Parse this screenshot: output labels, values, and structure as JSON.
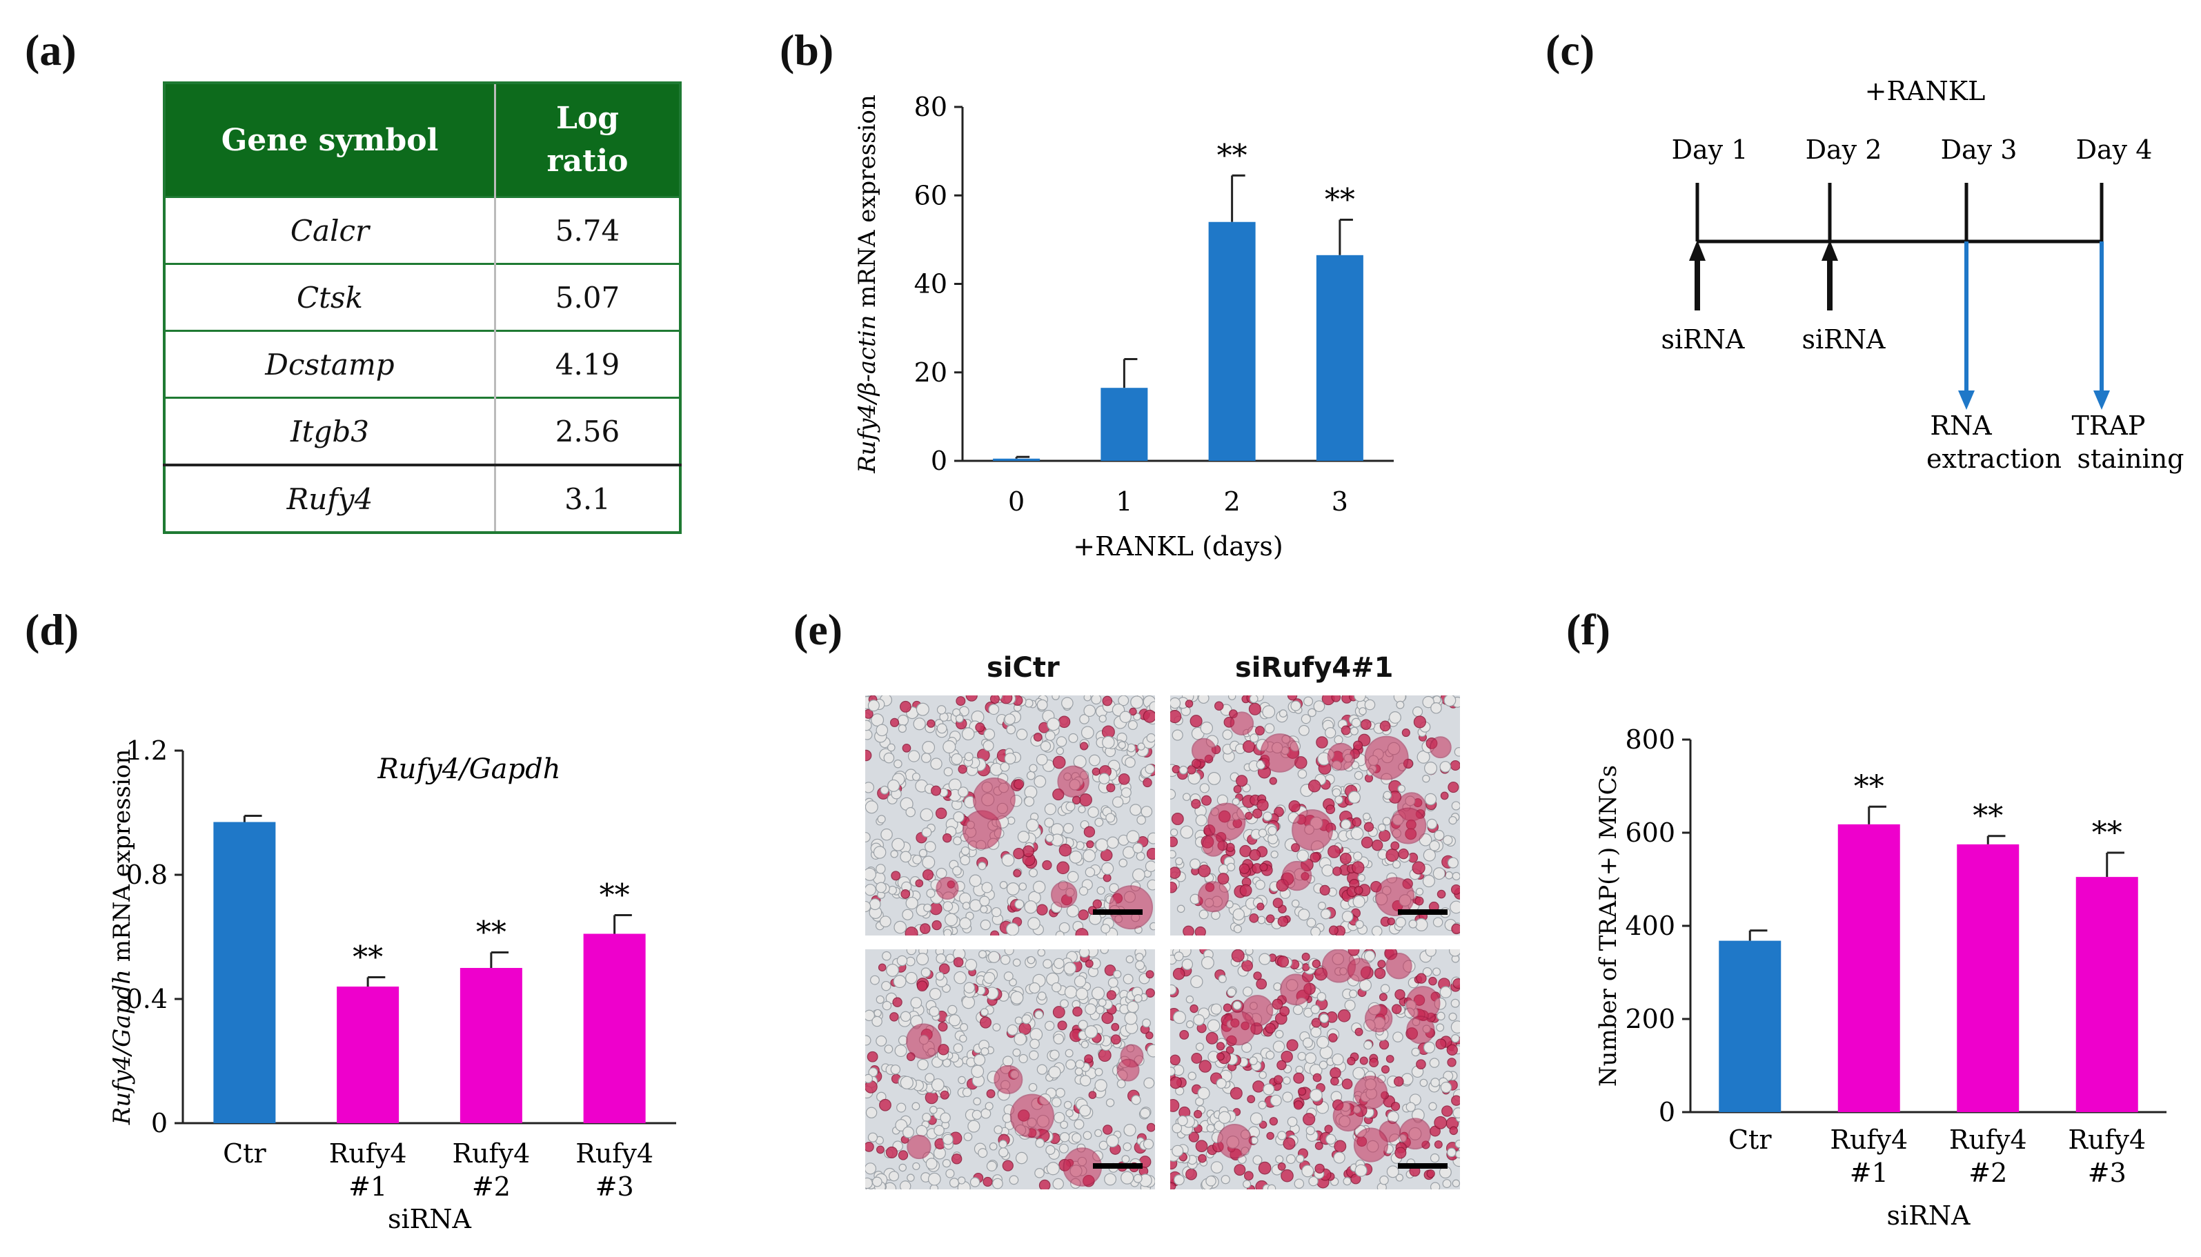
{
  "panel_labels": {
    "a": "(a)",
    "b": "(b)",
    "c": "(c)",
    "d": "(d)",
    "e": "(e)",
    "f": "(f)"
  },
  "table": {
    "headers": [
      "Gene symbol",
      "Log ratio"
    ],
    "rows": [
      {
        "gene": "Calcr",
        "ratio": "5.74"
      },
      {
        "gene": "Ctsk",
        "ratio": "5.07"
      },
      {
        "gene": "Dcstamp",
        "ratio": "4.19"
      },
      {
        "gene": "Itgb3",
        "ratio": "2.56"
      },
      {
        "gene": "Rufy4",
        "ratio": "3.1"
      }
    ]
  },
  "timeline": {
    "title": "+RANKL",
    "days": [
      "Day 1",
      "Day 2",
      "Day 3",
      "Day 4"
    ],
    "sirna_label": "siRNA",
    "rna_label": [
      "RNA",
      "extraction"
    ],
    "trap_label": [
      "TRAP",
      "staining"
    ],
    "colors": {
      "black_arrow": "#111111",
      "blue_arrow": "#1f78c8"
    }
  },
  "images": {
    "col_titles": [
      "siCtr",
      "siRufy4#1"
    ],
    "cell_colors": {
      "background": "#d7dbe0",
      "stained": "#c8305a",
      "unstained": "#e6e6e6"
    }
  },
  "chart_data": [
    {
      "id": "b",
      "type": "bar",
      "categories": [
        "0",
        "1",
        "2",
        "3"
      ],
      "values": [
        0.5,
        16.5,
        54,
        46.5
      ],
      "errors": [
        0.4,
        6.5,
        10.5,
        8
      ],
      "significance": [
        "",
        "",
        "**",
        "**"
      ],
      "colors": [
        "#1f78c8",
        "#1f78c8",
        "#1f78c8",
        "#1f78c8"
      ],
      "ylabel_italic": "Rufy4/β-actin",
      "ylabel": "mRNA expression",
      "xlabel": "+RANKL (days)",
      "ylim": [
        0,
        80
      ],
      "yticks": [
        "0",
        "20",
        "40",
        "60",
        "80"
      ]
    },
    {
      "id": "d",
      "type": "bar",
      "title": "Rufy4/Gapdh",
      "categories": [
        [
          "Ctr"
        ],
        [
          "Rufy4",
          "#1"
        ],
        [
          "Rufy4",
          "#2"
        ],
        [
          "Rufy4",
          "#3"
        ]
      ],
      "values": [
        0.97,
        0.44,
        0.5,
        0.61
      ],
      "errors": [
        0.02,
        0.03,
        0.05,
        0.06
      ],
      "significance": [
        "",
        "**",
        "**",
        "**"
      ],
      "colors": [
        "#1f78c8",
        "#ee00cc",
        "#ee00cc",
        "#ee00cc"
      ],
      "ylabel_italic": "Rufy4/Gapdh",
      "ylabel": "mRNA expression",
      "xlabel": "siRNA",
      "ylim": [
        0,
        1.2
      ],
      "yticks": [
        "0",
        "0.4",
        "0.8",
        "1.2"
      ]
    },
    {
      "id": "f",
      "type": "bar",
      "categories": [
        [
          "Ctr"
        ],
        [
          "Rufy4",
          "#1"
        ],
        [
          "Rufy4",
          "#2"
        ],
        [
          "Rufy4",
          "#3"
        ]
      ],
      "values": [
        368,
        618,
        575,
        505
      ],
      "errors": [
        22,
        38,
        18,
        52
      ],
      "significance": [
        "",
        "**",
        "**",
        "**"
      ],
      "colors": [
        "#1f78c8",
        "#ee00cc",
        "#ee00cc",
        "#ee00cc"
      ],
      "ylabel_italic": "",
      "ylabel": "Number of TRAP(+) MNCs",
      "xlabel": "siRNA",
      "ylim": [
        0,
        800
      ],
      "yticks": [
        "0",
        "200",
        "400",
        "600",
        "800"
      ]
    }
  ]
}
